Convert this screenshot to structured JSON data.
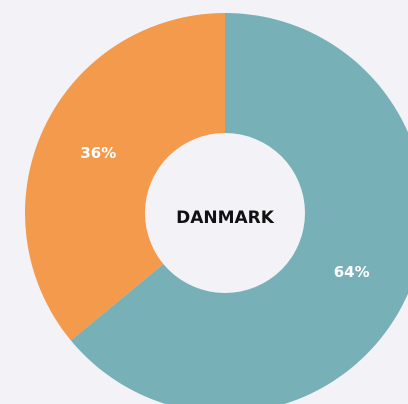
{
  "chart_data": {
    "type": "donut",
    "center_label": "DANMARK",
    "values": [
      64,
      36
    ],
    "value_labels": [
      "64%",
      "36%"
    ],
    "colors": [
      "#78b0b8",
      "#f39a4d"
    ]
  }
}
